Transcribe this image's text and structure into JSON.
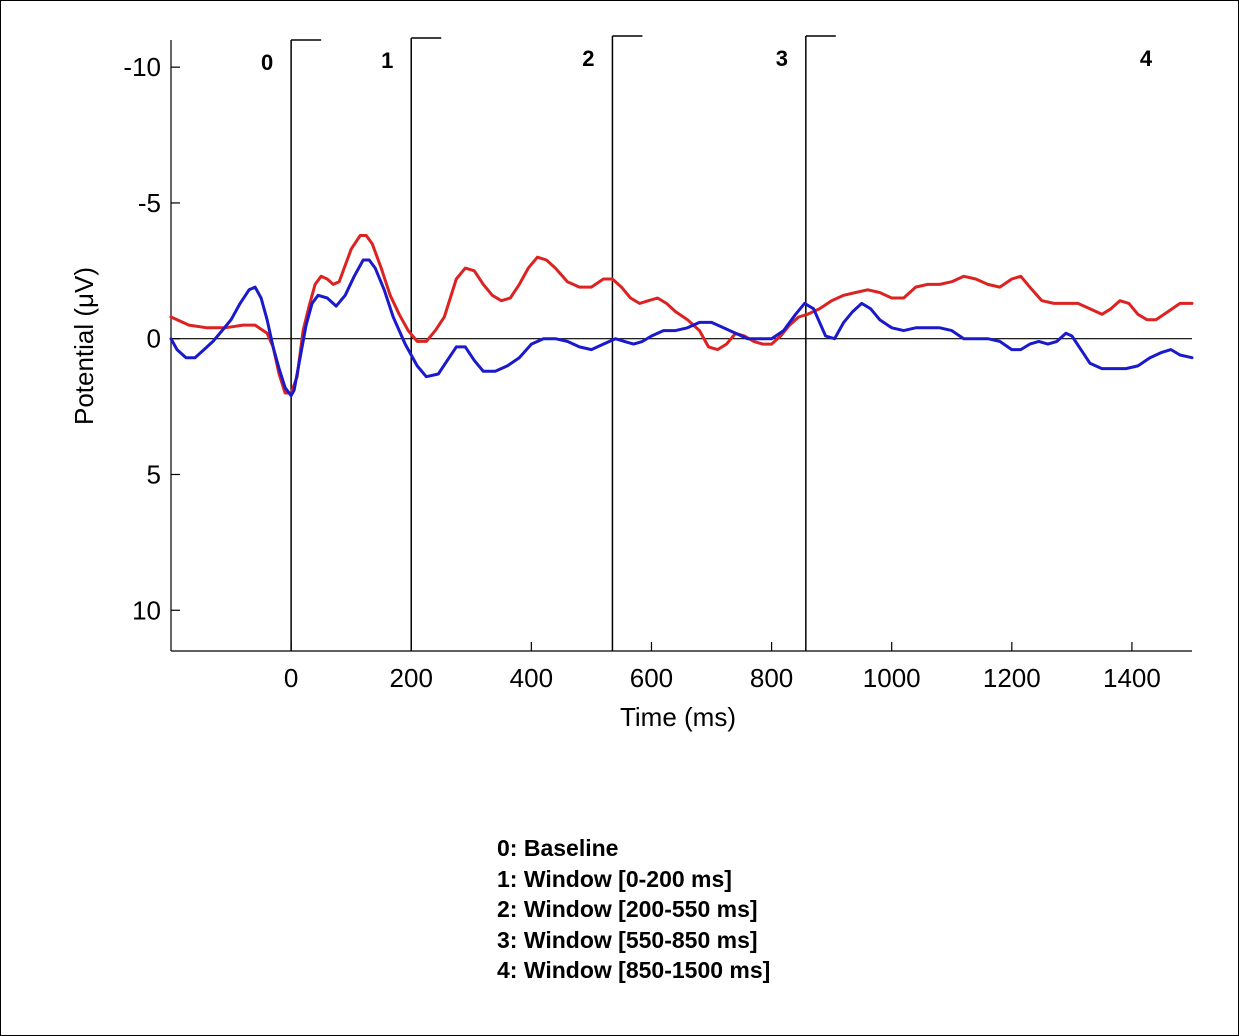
{
  "chart_data": {
    "type": "line",
    "xlabel": "Time (ms)",
    "ylabel": "Potential (μV)",
    "xlim": [
      -200,
      1500
    ],
    "ylim": [
      -11,
      11.5
    ],
    "y_reversed": true,
    "x_ticks": [
      0,
      200,
      400,
      600,
      800,
      1000,
      1200,
      1400
    ],
    "y_ticks": [
      -10,
      -5,
      0,
      5,
      10
    ],
    "windows": [
      {
        "label": "0",
        "x": 0
      },
      {
        "label": "1",
        "x": 200
      },
      {
        "label": "2",
        "x": 535
      },
      {
        "label": "3",
        "x": 857
      },
      {
        "label": "4",
        "x": null
      }
    ],
    "notes": [
      "0: Baseline",
      "1: Window [0-200 ms]",
      "2: Window [200-550 ms]",
      "3: Window [550-850 ms]",
      "4: Window [850-1500 ms]"
    ],
    "series": [
      {
        "color": "#dd2222",
        "points": [
          [
            -200,
            -0.8
          ],
          [
            -170,
            -0.5
          ],
          [
            -140,
            -0.4
          ],
          [
            -110,
            -0.4
          ],
          [
            -80,
            -0.5
          ],
          [
            -60,
            -0.5
          ],
          [
            -40,
            -0.2
          ],
          [
            -30,
            0.3
          ],
          [
            -20,
            1.3
          ],
          [
            -10,
            2.0
          ],
          [
            0,
            2.0
          ],
          [
            10,
            1.4
          ],
          [
            20,
            -0.3
          ],
          [
            30,
            -1.2
          ],
          [
            40,
            -2.0
          ],
          [
            50,
            -2.3
          ],
          [
            60,
            -2.2
          ],
          [
            70,
            -2.0
          ],
          [
            80,
            -2.1
          ],
          [
            90,
            -2.7
          ],
          [
            100,
            -3.3
          ],
          [
            115,
            -3.8
          ],
          [
            125,
            -3.8
          ],
          [
            135,
            -3.5
          ],
          [
            150,
            -2.6
          ],
          [
            165,
            -1.6
          ],
          [
            180,
            -0.9
          ],
          [
            195,
            -0.3
          ],
          [
            210,
            0.1
          ],
          [
            225,
            0.1
          ],
          [
            240,
            -0.3
          ],
          [
            255,
            -0.8
          ],
          [
            265,
            -1.5
          ],
          [
            275,
            -2.2
          ],
          [
            290,
            -2.6
          ],
          [
            305,
            -2.5
          ],
          [
            320,
            -2.0
          ],
          [
            335,
            -1.6
          ],
          [
            350,
            -1.4
          ],
          [
            365,
            -1.5
          ],
          [
            380,
            -2.0
          ],
          [
            395,
            -2.6
          ],
          [
            410,
            -3.0
          ],
          [
            425,
            -2.9
          ],
          [
            440,
            -2.6
          ],
          [
            460,
            -2.1
          ],
          [
            480,
            -1.9
          ],
          [
            500,
            -1.9
          ],
          [
            520,
            -2.2
          ],
          [
            535,
            -2.2
          ],
          [
            550,
            -1.9
          ],
          [
            565,
            -1.5
          ],
          [
            580,
            -1.3
          ],
          [
            595,
            -1.4
          ],
          [
            610,
            -1.5
          ],
          [
            625,
            -1.3
          ],
          [
            640,
            -1.0
          ],
          [
            660,
            -0.7
          ],
          [
            680,
            -0.3
          ],
          [
            695,
            0.3
          ],
          [
            710,
            0.4
          ],
          [
            725,
            0.2
          ],
          [
            740,
            -0.2
          ],
          [
            755,
            -0.1
          ],
          [
            770,
            0.1
          ],
          [
            785,
            0.2
          ],
          [
            800,
            0.2
          ],
          [
            815,
            -0.1
          ],
          [
            830,
            -0.5
          ],
          [
            845,
            -0.8
          ],
          [
            860,
            -0.9
          ],
          [
            880,
            -1.1
          ],
          [
            900,
            -1.4
          ],
          [
            920,
            -1.6
          ],
          [
            940,
            -1.7
          ],
          [
            960,
            -1.8
          ],
          [
            980,
            -1.7
          ],
          [
            1000,
            -1.5
          ],
          [
            1020,
            -1.5
          ],
          [
            1040,
            -1.9
          ],
          [
            1060,
            -2.0
          ],
          [
            1080,
            -2.0
          ],
          [
            1100,
            -2.1
          ],
          [
            1120,
            -2.3
          ],
          [
            1140,
            -2.2
          ],
          [
            1160,
            -2.0
          ],
          [
            1180,
            -1.9
          ],
          [
            1200,
            -2.2
          ],
          [
            1215,
            -2.3
          ],
          [
            1230,
            -1.9
          ],
          [
            1250,
            -1.4
          ],
          [
            1270,
            -1.3
          ],
          [
            1290,
            -1.3
          ],
          [
            1310,
            -1.3
          ],
          [
            1330,
            -1.1
          ],
          [
            1350,
            -0.9
          ],
          [
            1365,
            -1.1
          ],
          [
            1380,
            -1.4
          ],
          [
            1395,
            -1.3
          ],
          [
            1410,
            -0.9
          ],
          [
            1425,
            -0.7
          ],
          [
            1440,
            -0.7
          ],
          [
            1460,
            -1.0
          ],
          [
            1480,
            -1.3
          ],
          [
            1500,
            -1.3
          ]
        ]
      },
      {
        "color": "#1a1acc",
        "points": [
          [
            -200,
            0.0
          ],
          [
            -190,
            0.4
          ],
          [
            -175,
            0.7
          ],
          [
            -160,
            0.7
          ],
          [
            -145,
            0.4
          ],
          [
            -130,
            0.1
          ],
          [
            -115,
            -0.3
          ],
          [
            -100,
            -0.7
          ],
          [
            -85,
            -1.3
          ],
          [
            -70,
            -1.8
          ],
          [
            -60,
            -1.9
          ],
          [
            -50,
            -1.5
          ],
          [
            -40,
            -0.7
          ],
          [
            -30,
            0.3
          ],
          [
            -20,
            1.1
          ],
          [
            -10,
            1.8
          ],
          [
            0,
            2.1
          ],
          [
            5,
            1.9
          ],
          [
            15,
            0.7
          ],
          [
            25,
            -0.5
          ],
          [
            35,
            -1.3
          ],
          [
            45,
            -1.6
          ],
          [
            60,
            -1.5
          ],
          [
            75,
            -1.2
          ],
          [
            90,
            -1.6
          ],
          [
            105,
            -2.3
          ],
          [
            120,
            -2.9
          ],
          [
            130,
            -2.9
          ],
          [
            140,
            -2.6
          ],
          [
            155,
            -1.8
          ],
          [
            170,
            -0.8
          ],
          [
            190,
            0.2
          ],
          [
            210,
            1.0
          ],
          [
            225,
            1.4
          ],
          [
            245,
            1.3
          ],
          [
            260,
            0.8
          ],
          [
            275,
            0.3
          ],
          [
            290,
            0.3
          ],
          [
            305,
            0.8
          ],
          [
            320,
            1.2
          ],
          [
            340,
            1.2
          ],
          [
            360,
            1.0
          ],
          [
            380,
            0.7
          ],
          [
            400,
            0.2
          ],
          [
            420,
            0.0
          ],
          [
            440,
            0.0
          ],
          [
            460,
            0.1
          ],
          [
            480,
            0.3
          ],
          [
            500,
            0.4
          ],
          [
            520,
            0.2
          ],
          [
            540,
            0.0
          ],
          [
            555,
            0.1
          ],
          [
            570,
            0.2
          ],
          [
            585,
            0.1
          ],
          [
            600,
            -0.1
          ],
          [
            620,
            -0.3
          ],
          [
            640,
            -0.3
          ],
          [
            660,
            -0.4
          ],
          [
            680,
            -0.6
          ],
          [
            700,
            -0.6
          ],
          [
            720,
            -0.4
          ],
          [
            740,
            -0.2
          ],
          [
            760,
            0.0
          ],
          [
            780,
            0.0
          ],
          [
            800,
            0.0
          ],
          [
            820,
            -0.3
          ],
          [
            840,
            -0.9
          ],
          [
            855,
            -1.3
          ],
          [
            870,
            -1.1
          ],
          [
            880,
            -0.6
          ],
          [
            890,
            -0.1
          ],
          [
            905,
            0.0
          ],
          [
            920,
            -0.6
          ],
          [
            935,
            -1.0
          ],
          [
            950,
            -1.3
          ],
          [
            965,
            -1.1
          ],
          [
            980,
            -0.7
          ],
          [
            1000,
            -0.4
          ],
          [
            1020,
            -0.3
          ],
          [
            1040,
            -0.4
          ],
          [
            1060,
            -0.4
          ],
          [
            1080,
            -0.4
          ],
          [
            1100,
            -0.3
          ],
          [
            1120,
            0.0
          ],
          [
            1140,
            0.0
          ],
          [
            1160,
            0.0
          ],
          [
            1180,
            0.1
          ],
          [
            1200,
            0.4
          ],
          [
            1215,
            0.4
          ],
          [
            1230,
            0.2
          ],
          [
            1245,
            0.1
          ],
          [
            1260,
            0.2
          ],
          [
            1275,
            0.1
          ],
          [
            1290,
            -0.2
          ],
          [
            1300,
            -0.1
          ],
          [
            1315,
            0.4
          ],
          [
            1330,
            0.9
          ],
          [
            1350,
            1.1
          ],
          [
            1370,
            1.1
          ],
          [
            1390,
            1.1
          ],
          [
            1410,
            1.0
          ],
          [
            1430,
            0.7
          ],
          [
            1450,
            0.5
          ],
          [
            1465,
            0.4
          ],
          [
            1480,
            0.6
          ],
          [
            1500,
            0.7
          ]
        ]
      }
    ]
  }
}
